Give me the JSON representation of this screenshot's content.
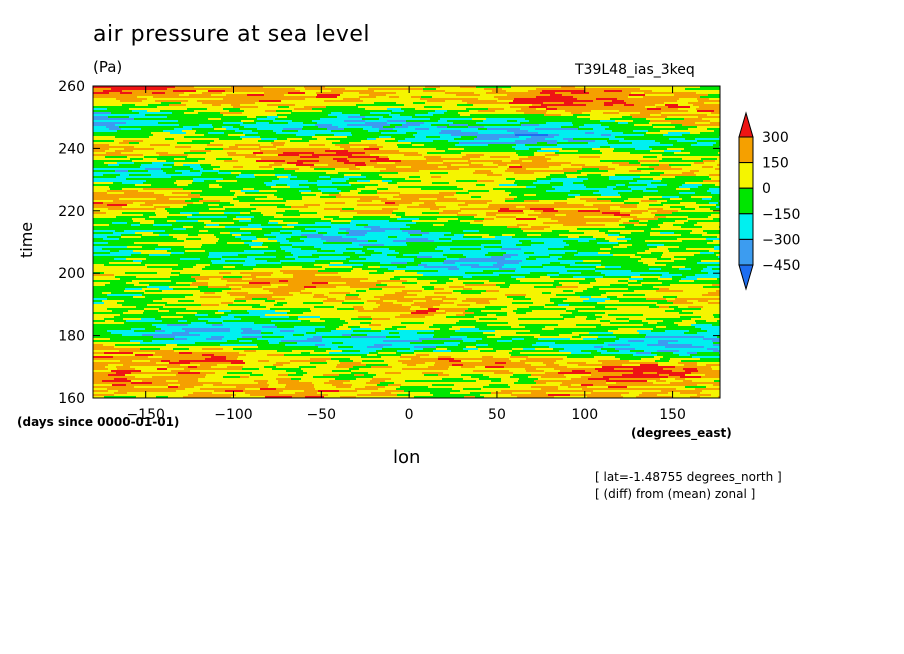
{
  "title": "air pressure at sea level",
  "units": "(Pa)",
  "run_name": "T39L48_ias_3keq",
  "y_axis_label": "time",
  "x_axis_label": "lon",
  "y_units": "(days since 0000-01-01)",
  "x_units": "(degrees_east)",
  "info_lines": [
    "[ lat=-1.48755 degrees_north ]",
    "[ (diff) from (mean) zonal ]"
  ],
  "chart_data": {
    "type": "heatmap",
    "title": "air pressure at sea level",
    "xlabel": "lon",
    "ylabel": "time",
    "xlim": [
      -180,
      177
    ],
    "ylim": [
      160,
      260
    ],
    "x_ticks": [
      -150,
      -100,
      -50,
      0,
      50,
      100,
      150
    ],
    "y_ticks": [
      160,
      180,
      200,
      220,
      240,
      260
    ],
    "colorbar": {
      "levels": [
        -450,
        -300,
        -150,
        0,
        150,
        300
      ],
      "colors": [
        "#1e6ef0",
        "#3c9cf0",
        "#00f0f0",
        "#00e600",
        "#f5f500",
        "#f5a000",
        "#ee1414"
      ],
      "extend": "both"
    },
    "field_description_bands": [
      {
        "time": 162,
        "tendency": 150
      },
      {
        "time": 172,
        "tendency": 220
      },
      {
        "time": 178,
        "tendency": -250
      },
      {
        "time": 190,
        "tendency": 60
      },
      {
        "time": 198,
        "tendency": 120
      },
      {
        "time": 203,
        "tendency": -200
      },
      {
        "time": 212,
        "tendency": -150
      },
      {
        "time": 222,
        "tendency": 140
      },
      {
        "time": 230,
        "tendency": -120
      },
      {
        "time": 236,
        "tendency": 200
      },
      {
        "time": 246,
        "tendency": -230
      },
      {
        "time": 257,
        "tendency": 220
      }
    ]
  }
}
